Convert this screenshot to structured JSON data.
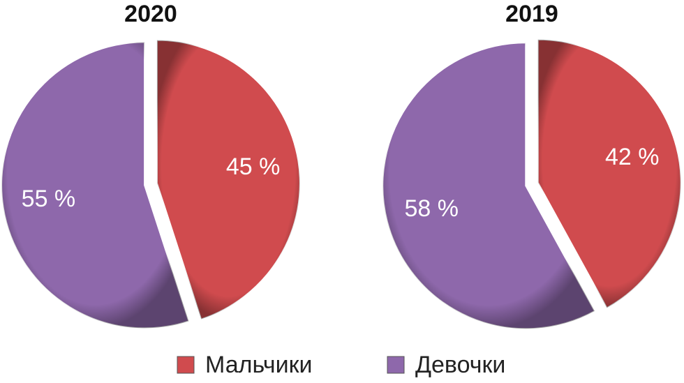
{
  "chart_data": [
    {
      "type": "pie",
      "title": "2020",
      "categories": [
        "Мальчики",
        "Девочки"
      ],
      "values": [
        45,
        55
      ],
      "value_labels": [
        "45 %",
        "55 %"
      ],
      "colors": [
        "#d04b4e",
        "#8e68ab"
      ]
    },
    {
      "type": "pie",
      "title": "2019",
      "categories": [
        "Мальчики",
        "Девочки"
      ],
      "values": [
        42,
        58
      ],
      "value_labels": [
        "42 %",
        "58 %"
      ],
      "colors": [
        "#d04b4e",
        "#8e68ab"
      ]
    }
  ]
}
